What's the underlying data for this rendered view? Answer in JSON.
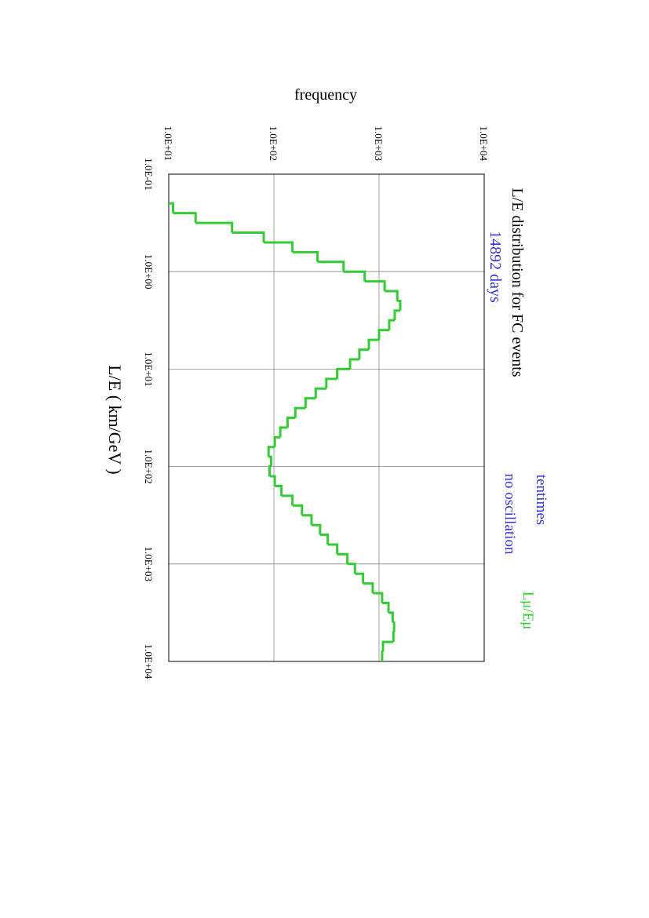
{
  "chart_data": {
    "type": "histogram",
    "title": "L/E distribution for FC events",
    "subtitle": "14892 days",
    "annotations": [
      "tentimes",
      "no oscillation"
    ],
    "xlabel": "L/E  ( km/GeV )",
    "ylabel": "frequency",
    "xscale": "log",
    "yscale": "log",
    "grid": true,
    "rotated": true,
    "xlim": [
      0.1,
      10000
    ],
    "ylim": [
      10,
      10000
    ],
    "xticks": [
      {
        "value": 0.1,
        "label": "1.0E-01"
      },
      {
        "value": 1,
        "label": "1.0E+00"
      },
      {
        "value": 10,
        "label": "1.0E+01"
      },
      {
        "value": 100,
        "label": "1.0E+02"
      },
      {
        "value": 1000,
        "label": "1.0E+03"
      },
      {
        "value": 10000,
        "label": "1.0E+04"
      }
    ],
    "yticks": [
      {
        "value": 10,
        "label": "1.0E+01"
      },
      {
        "value": 100,
        "label": "1.0E+02"
      },
      {
        "value": 1000,
        "label": "1.0E+03"
      },
      {
        "value": 10000,
        "label": "1.0E+04"
      }
    ],
    "bins": [
      0.1995,
      0.2512,
      0.3162,
      0.3981,
      0.5012,
      0.631,
      0.7943,
      1,
      1.259,
      1.585,
      1.995,
      2.512,
      3.162,
      3.981,
      5.012,
      6.31,
      7.943,
      10,
      12.59,
      15.85,
      19.95,
      25.12,
      31.62,
      39.81,
      50.12,
      63.1,
      79.43,
      100,
      125.9,
      158.5,
      199.5,
      251.2,
      316.2,
      398.1,
      501.2,
      631,
      794.3,
      1000,
      1259,
      1585,
      1995,
      2512,
      3162,
      3981,
      5012,
      6310,
      7943,
      10000
    ],
    "series": [
      {
        "name": "Lμ/Eμ",
        "color": "#33cc33",
        "values": [
          11,
          18,
          40,
          80,
          150,
          260,
          460,
          730,
          1130,
          1490,
          1590,
          1410,
          1250,
          1000,
          800,
          650,
          530,
          400,
          315,
          250,
          200,
          160,
          135,
          115,
          102,
          89,
          94,
          91,
          102,
          118,
          150,
          185,
          228,
          275,
          325,
          400,
          500,
          590,
          705,
          870,
          1070,
          1230,
          1350,
          1390,
          1370,
          1090,
          1070
        ]
      }
    ],
    "text_color": "#3333dd"
  }
}
